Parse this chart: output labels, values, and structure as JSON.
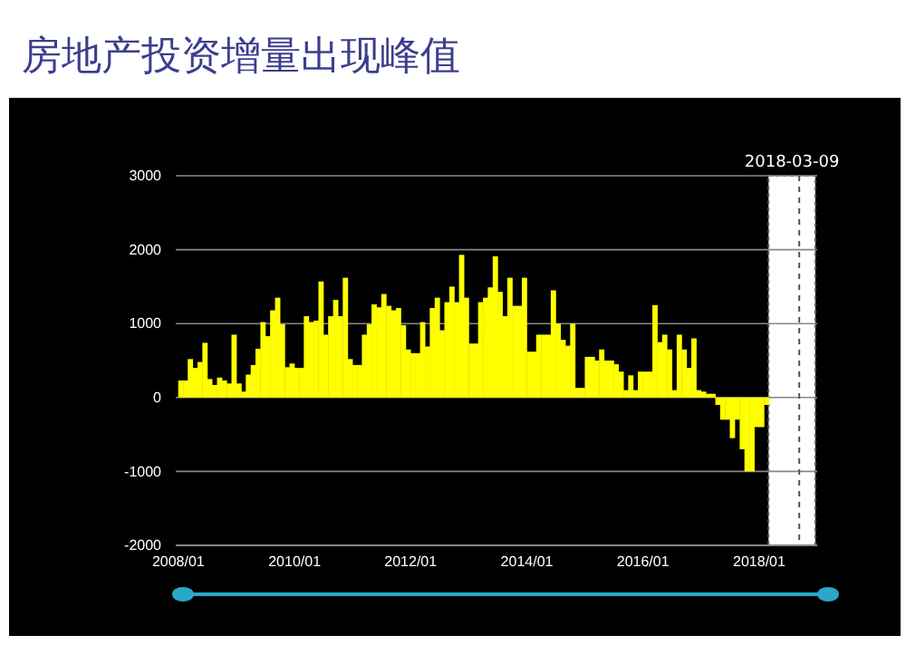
{
  "chart_data": {
    "type": "bar",
    "title": "房地产投资增量出现峰值",
    "x": [
      "2008-01",
      "2008-02",
      "2008-03",
      "2008-04",
      "2008-05",
      "2008-06",
      "2008-07",
      "2008-08",
      "2008-09",
      "2008-10",
      "2008-11",
      "2008-12",
      "2009-01",
      "2009-02",
      "2009-03",
      "2009-04",
      "2009-05",
      "2009-06",
      "2009-07",
      "2009-08",
      "2009-09",
      "2009-10",
      "2009-11",
      "2009-12",
      "2010-01",
      "2010-02",
      "2010-03",
      "2010-04",
      "2010-05",
      "2010-06",
      "2010-07",
      "2010-08",
      "2010-09",
      "2010-10",
      "2010-11",
      "2010-12",
      "2011-01",
      "2011-02",
      "2011-03",
      "2011-04",
      "2011-05",
      "2011-06",
      "2011-07",
      "2011-08",
      "2011-09",
      "2011-10",
      "2011-11",
      "2011-12",
      "2012-01",
      "2012-02",
      "2012-03",
      "2012-04",
      "2012-05",
      "2012-06",
      "2012-07",
      "2012-08",
      "2012-09",
      "2012-10",
      "2012-11",
      "2012-12",
      "2013-01",
      "2013-02",
      "2013-03",
      "2013-04",
      "2013-05",
      "2013-06",
      "2013-07",
      "2013-08",
      "2013-09",
      "2013-10",
      "2013-11",
      "2013-12",
      "2014-01",
      "2014-02",
      "2014-03",
      "2014-04",
      "2014-05",
      "2014-06",
      "2014-07",
      "2014-08",
      "2014-09",
      "2014-10",
      "2014-11",
      "2014-12",
      "2015-01",
      "2015-02",
      "2015-03",
      "2015-04",
      "2015-05",
      "2015-06",
      "2015-07",
      "2015-08",
      "2015-09",
      "2015-10",
      "2015-11",
      "2015-12",
      "2016-01",
      "2016-02",
      "2016-03",
      "2016-04",
      "2016-05",
      "2016-06",
      "2016-07",
      "2016-08",
      "2016-09",
      "2016-10",
      "2016-11",
      "2016-12",
      "2017-01",
      "2017-02",
      "2017-03",
      "2017-04",
      "2017-05",
      "2017-06",
      "2017-07",
      "2017-08",
      "2017-09",
      "2017-10",
      "2017-11",
      "2017-12",
      "2018-01",
      "2018-02"
    ],
    "values": [
      230,
      230,
      520,
      400,
      480,
      740,
      250,
      170,
      270,
      230,
      190,
      850,
      190,
      80,
      310,
      440,
      660,
      1020,
      830,
      1180,
      1350,
      990,
      410,
      460,
      400,
      400,
      1100,
      1020,
      1040,
      1570,
      850,
      1100,
      1320,
      1100,
      1620,
      520,
      440,
      440,
      850,
      990,
      1260,
      1220,
      1400,
      1240,
      1180,
      1210,
      980,
      650,
      600,
      600,
      1020,
      690,
      1210,
      1350,
      910,
      1290,
      1500,
      1290,
      1930,
      1350,
      730,
      730,
      1290,
      1350,
      1490,
      1910,
      1430,
      1100,
      1620,
      1240,
      1240,
      1620,
      620,
      620,
      850,
      850,
      850,
      1450,
      1000,
      780,
      700,
      1000,
      130,
      130,
      550,
      550,
      500,
      650,
      500,
      500,
      450,
      350,
      100,
      300,
      100,
      350,
      350,
      350,
      1250,
      750,
      850,
      650,
      100,
      850,
      650,
      400,
      800,
      100,
      80,
      50,
      50,
      -100,
      -300,
      -300,
      -550,
      -300,
      -700,
      -1000,
      -1000,
      -400,
      -400,
      -100
    ],
    "color": "#ffff00",
    "xlim": [
      "2007-12-16",
      "2019-01-01"
    ],
    "xticks": [
      {
        "value": "2008-01",
        "label": "2008/01"
      },
      {
        "value": "2010-01",
        "label": "2010/01"
      },
      {
        "value": "2012-01",
        "label": "2012/01"
      },
      {
        "value": "2014-01",
        "label": "2014/01"
      },
      {
        "value": "2016-01",
        "label": "2016/01"
      },
      {
        "value": "2018-01",
        "label": "2018/01"
      }
    ],
    "ylim": [
      -2000,
      3000
    ],
    "yticks": [
      -2000,
      -1000,
      0,
      1000,
      2000,
      3000
    ],
    "grid": "y",
    "bands": [
      {
        "axis": "x",
        "from": "2018-03-01",
        "to": "2018-12-20",
        "label": "2018-03-09",
        "color": "#ffffff"
      }
    ],
    "ref_lines": [
      {
        "axis": "x",
        "value": "2018-09-10",
        "line_style": "dashed",
        "color": "#555555"
      }
    ]
  }
}
